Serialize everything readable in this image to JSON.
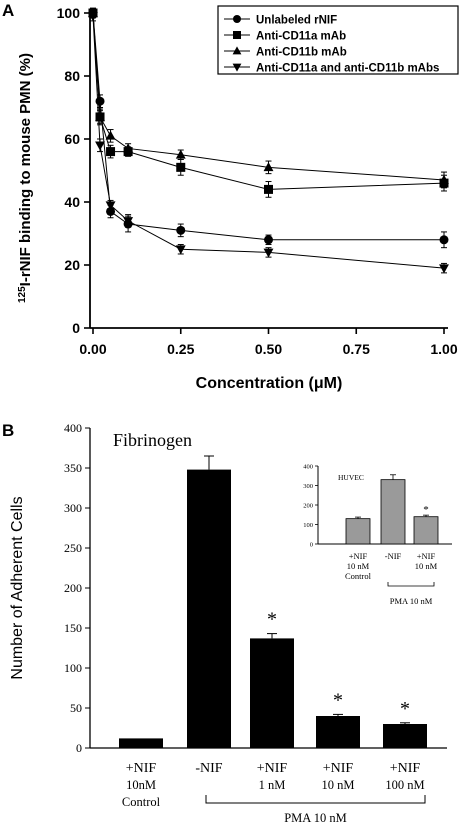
{
  "chart_data": [
    {
      "panel_label": "A",
      "type": "line",
      "ylabel": "125I-rNIF binding to mouse PMN (%)",
      "ylabel_sup": "125",
      "ylabel_rest": "I-rNIF binding to mouse PMN (%)",
      "xlabel": "Concentration (μM)",
      "xlim": [
        0,
        1.0
      ],
      "ylim": [
        0,
        100
      ],
      "xticks": [
        0.0,
        0.25,
        0.5,
        0.75,
        1.0
      ],
      "xtick_labels": [
        "0.00",
        "0.25",
        "0.50",
        "0.75",
        "1.00"
      ],
      "yticks": [
        0,
        20,
        40,
        60,
        80,
        100
      ],
      "ytick_labels": [
        "0",
        "20",
        "40",
        "60",
        "80",
        "100"
      ],
      "legend_position": "top-right",
      "grid": false,
      "series": [
        {
          "name": "Unlabeled rNIF",
          "marker": "circle",
          "x": [
            0,
            0.02,
            0.05,
            0.1,
            0.25,
            0.5,
            1.0
          ],
          "y": [
            100,
            72,
            37,
            33,
            31,
            28,
            28
          ],
          "err": [
            1.5,
            2,
            2,
            2.5,
            2,
            1.5,
            2.5
          ]
        },
        {
          "name": "Anti-CD11a mAb",
          "marker": "square",
          "x": [
            0,
            0.02,
            0.05,
            0.1,
            0.25,
            0.5,
            1.0
          ],
          "y": [
            100,
            67,
            56,
            56,
            51,
            44,
            46
          ],
          "err": [
            1.5,
            2.5,
            2,
            1.5,
            2.5,
            2.5,
            2.5
          ]
        },
        {
          "name": "Anti-CD11b mAb",
          "marker": "triangle-up",
          "x": [
            0,
            0.02,
            0.05,
            0.1,
            0.25,
            0.5,
            1.0
          ],
          "y": [
            100,
            67,
            61,
            57,
            55,
            51,
            47
          ],
          "err": [
            1.5,
            2,
            2,
            1.5,
            1.5,
            2,
            2.5
          ]
        },
        {
          "name": "Anti-CD11a and anti-CD11b mAbs",
          "marker": "triangle-down",
          "x": [
            0,
            0.02,
            0.05,
            0.1,
            0.25,
            0.5,
            1.0
          ],
          "y": [
            99,
            58,
            39,
            34,
            25,
            24,
            19
          ],
          "err": [
            1.5,
            2,
            1.5,
            2,
            1.5,
            1.5,
            1.5
          ]
        }
      ]
    },
    {
      "panel_label": "B",
      "type": "bar",
      "title": "Fibrinogen",
      "ylabel": "Number of Adherent Cells",
      "ylim": [
        0,
        400
      ],
      "yticks": [
        0,
        50,
        100,
        150,
        200,
        250,
        300,
        350,
        400
      ],
      "ytick_labels": [
        "0",
        "50",
        "100",
        "150",
        "200",
        "250",
        "300",
        "350",
        "400"
      ],
      "categories": [
        [
          "+NIF",
          "10nM",
          "Control"
        ],
        [
          "-NIF"
        ],
        [
          "+NIF",
          "1 nM"
        ],
        [
          "+NIF",
          "10 nM"
        ],
        [
          "+NIF",
          "100 nM"
        ]
      ],
      "values": [
        12,
        348,
        137,
        40,
        30
      ],
      "err": [
        0,
        17,
        6,
        2,
        1.5
      ],
      "significance": [
        "",
        "",
        "*",
        "*",
        "*"
      ],
      "bracket": {
        "label": "PMA 10 nM",
        "from_index": 1,
        "to_index": 4
      },
      "bar_color": "#000000"
    },
    {
      "panel_label": "",
      "type": "bar",
      "title": "HUVEC",
      "ylim": [
        0,
        400
      ],
      "yticks": [
        0,
        100,
        200,
        300,
        400
      ],
      "ytick_labels": [
        "0",
        "100",
        "200",
        "300",
        "400"
      ],
      "categories": [
        [
          "+NIF",
          "10 nM",
          "Control"
        ],
        [
          "-NIF"
        ],
        [
          "+NIF",
          "10 nM"
        ]
      ],
      "values": [
        130,
        330,
        140
      ],
      "err": [
        8,
        25,
        8
      ],
      "significance": [
        "",
        "",
        "*"
      ],
      "bracket": {
        "label": "PMA 10 nM",
        "from_index": 1,
        "to_index": 2
      },
      "bar_color": "#9a9a9a"
    }
  ]
}
